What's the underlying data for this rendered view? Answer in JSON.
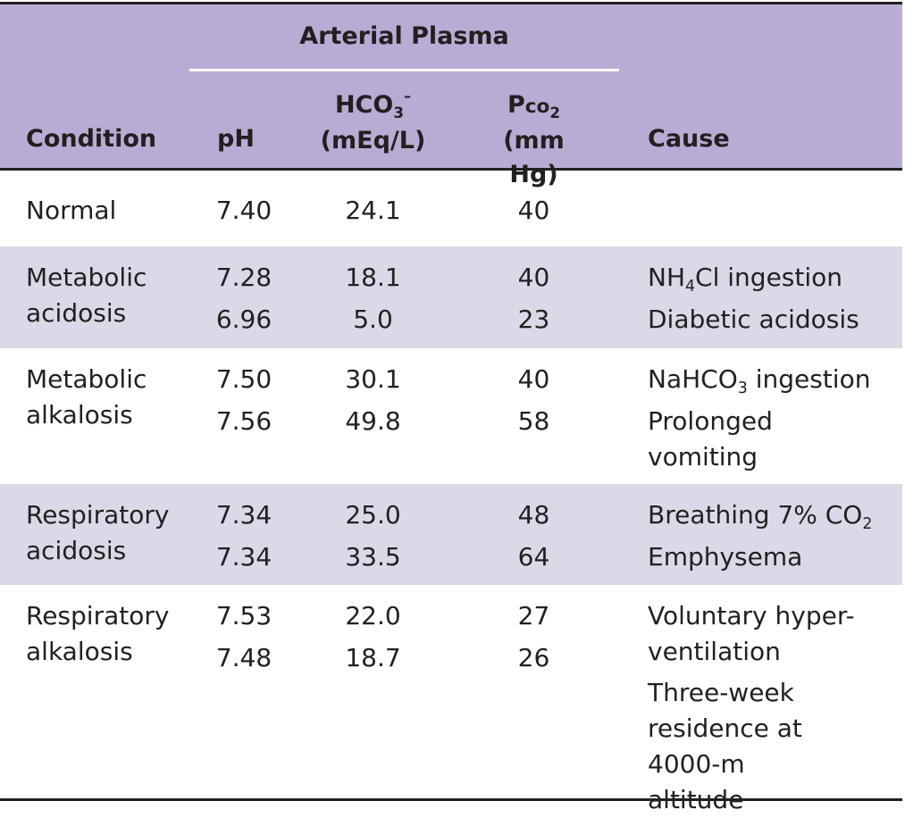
{
  "header": {
    "group_title": "Arterial Plasma",
    "condition": "Condition",
    "ph": "pH",
    "hco3_line1": "HCO",
    "hco3_sub": "3",
    "hco3_sup": "–",
    "hco3_unit": "(mEq/L)",
    "pco2_main": "P",
    "pco2_small": "co",
    "pco2_sub": "2",
    "pco2_unit": "(mm Hg)",
    "cause": "Cause"
  },
  "rows": [
    {
      "condition": "Normal",
      "ph": [
        "7.40"
      ],
      "hco3": [
        "24.1"
      ],
      "pco2": [
        "40"
      ],
      "causes": []
    },
    {
      "condition": "Metabolic acidosis",
      "ph": [
        "7.28",
        "6.96"
      ],
      "hco3": [
        "18.1",
        "5.0"
      ],
      "pco2": [
        "40",
        "23"
      ],
      "causes": [
        {
          "pre": "NH",
          "sub": "4",
          "post": "Cl ingestion"
        },
        {
          "pre": "Diabetic acidosis",
          "sub": "",
          "post": ""
        }
      ]
    },
    {
      "condition": "Metabolic alkalosis",
      "ph": [
        "7.50",
        "7.56"
      ],
      "hco3": [
        "30.1",
        "49.8"
      ],
      "pco2": [
        "40",
        "58"
      ],
      "causes": [
        {
          "pre": "NaHCO",
          "sub": "3",
          "post": " ingestion"
        },
        {
          "pre": "Prolonged vomiting",
          "sub": "",
          "post": ""
        }
      ]
    },
    {
      "condition": "Respiratory acidosis",
      "ph": [
        "7.34",
        "7.34"
      ],
      "hco3": [
        "25.0",
        "33.5"
      ],
      "pco2": [
        "48",
        "64"
      ],
      "causes": [
        {
          "pre": "Breathing 7% CO",
          "sub": "2",
          "post": ""
        },
        {
          "pre": "Emphysema",
          "sub": "",
          "post": ""
        }
      ]
    },
    {
      "condition": "Respiratory alkalosis",
      "ph": [
        "7.53",
        "7.48"
      ],
      "hco3": [
        "22.0",
        "18.7"
      ],
      "pco2": [
        "27",
        "26"
      ],
      "causes": [
        {
          "pre": "Voluntary hyper-ventilation",
          "sub": "",
          "post": ""
        },
        {
          "pre": "Three-week residence at 4000-m altitude",
          "sub": "",
          "post": ""
        }
      ]
    }
  ],
  "colors": {
    "header_bg": "#b9acd4",
    "shaded_row": "#ddd8e7",
    "rule": "#231f20"
  }
}
